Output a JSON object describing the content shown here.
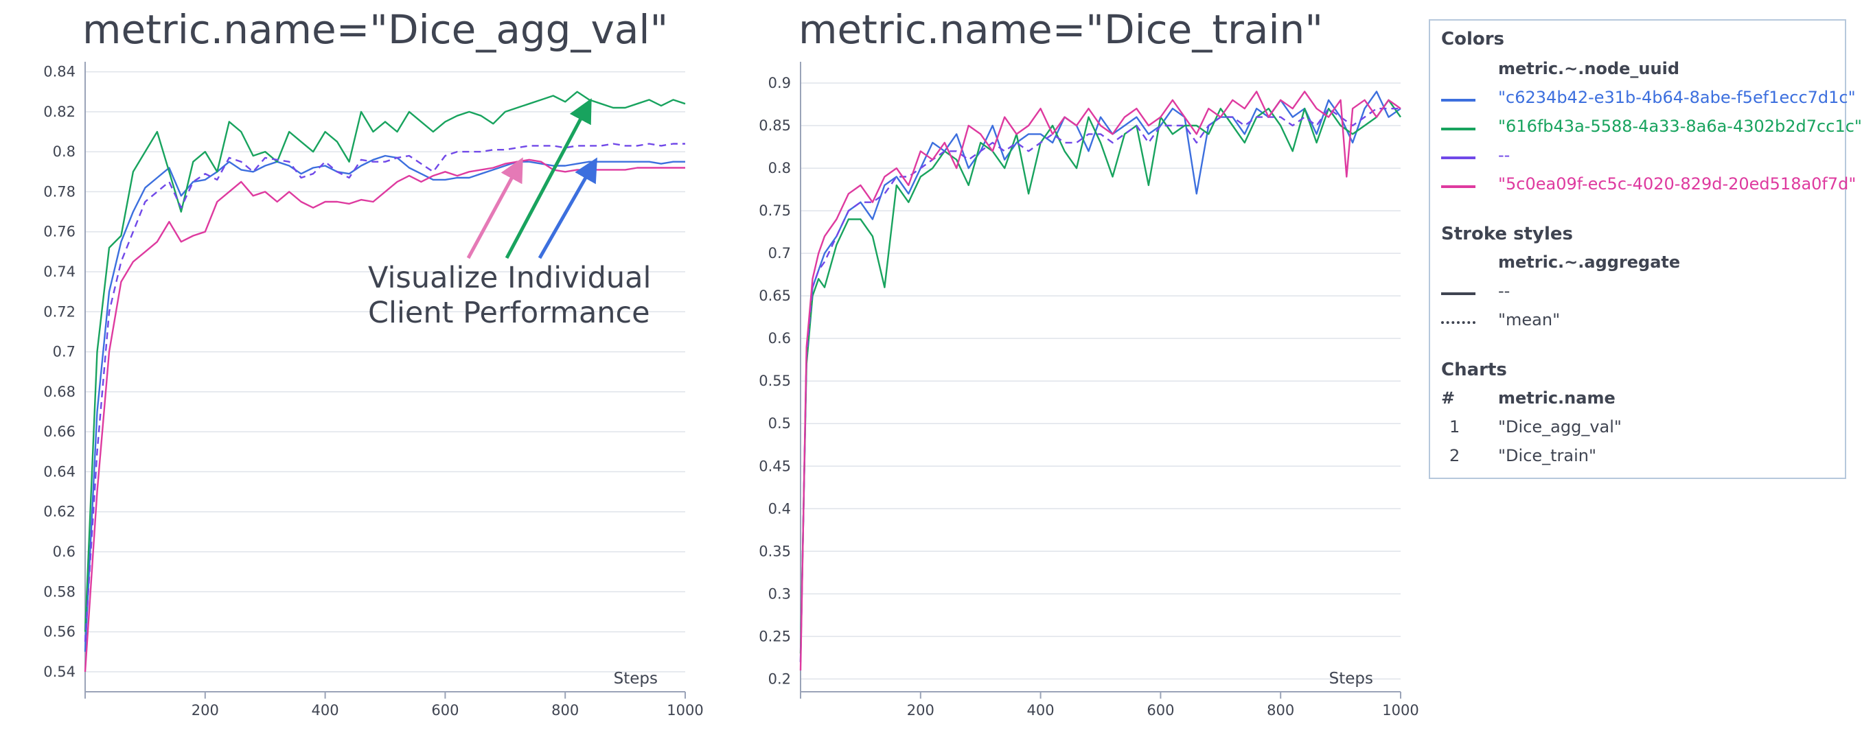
{
  "chart_data": [
    {
      "type": "line",
      "title": "metric.name=\"Dice_agg_val\"",
      "xlabel": "Steps",
      "ylabel": "",
      "xlim": [
        0,
        1000
      ],
      "ylim": [
        0.53,
        0.845
      ],
      "x_ticks": [
        200,
        400,
        600,
        800,
        1000
      ],
      "y_ticks": [
        0.54,
        0.56,
        0.58,
        0.6,
        0.62,
        0.64,
        0.66,
        0.68,
        0.7,
        0.72,
        0.74,
        0.76,
        0.78,
        0.8,
        0.82,
        0.84
      ],
      "y_tick_labels": [
        "0.54",
        "0.56",
        "0.58",
        "0.6",
        "0.62",
        "0.64",
        "0.66",
        "0.68",
        "0.7",
        "0.72",
        "0.74",
        "0.76",
        "0.78",
        "0.8",
        "0.82",
        "0.84"
      ],
      "grid": true,
      "series": [
        {
          "name": "\"c6234b42-e31b-4b64-8abe-f5ef1ecc7d1c\"",
          "color": "#3c6fde",
          "dash": "solid",
          "x": [
            0,
            20,
            40,
            60,
            80,
            100,
            120,
            140,
            160,
            180,
            200,
            220,
            240,
            260,
            280,
            300,
            320,
            340,
            360,
            380,
            400,
            420,
            440,
            460,
            480,
            500,
            520,
            540,
            560,
            580,
            600,
            620,
            640,
            660,
            680,
            700,
            720,
            740,
            760,
            780,
            800,
            820,
            840,
            860,
            880,
            900,
            920,
            940,
            960,
            980,
            1000
          ],
          "y": [
            0.55,
            0.67,
            0.73,
            0.755,
            0.77,
            0.782,
            0.787,
            0.792,
            0.778,
            0.785,
            0.786,
            0.79,
            0.795,
            0.791,
            0.79,
            0.793,
            0.795,
            0.793,
            0.789,
            0.792,
            0.793,
            0.79,
            0.789,
            0.793,
            0.796,
            0.798,
            0.797,
            0.792,
            0.789,
            0.786,
            0.786,
            0.787,
            0.787,
            0.789,
            0.791,
            0.793,
            0.795,
            0.795,
            0.794,
            0.793,
            0.793,
            0.794,
            0.795,
            0.795,
            0.795,
            0.795,
            0.795,
            0.795,
            0.794,
            0.795,
            0.795
          ]
        },
        {
          "name": "\"616fb43a-5588-4a33-8a6a-4302b2d7cc1c\"",
          "color": "#18a35e",
          "dash": "solid",
          "x": [
            0,
            20,
            40,
            60,
            80,
            100,
            120,
            140,
            160,
            180,
            200,
            220,
            240,
            260,
            280,
            300,
            320,
            340,
            360,
            380,
            400,
            420,
            440,
            460,
            480,
            500,
            520,
            540,
            560,
            580,
            600,
            620,
            640,
            660,
            680,
            700,
            720,
            740,
            760,
            780,
            800,
            820,
            840,
            860,
            880,
            900,
            920,
            940,
            960,
            980,
            1000
          ],
          "y": [
            0.56,
            0.7,
            0.752,
            0.758,
            0.79,
            0.8,
            0.81,
            0.79,
            0.77,
            0.795,
            0.8,
            0.79,
            0.815,
            0.81,
            0.798,
            0.8,
            0.795,
            0.81,
            0.805,
            0.8,
            0.81,
            0.805,
            0.795,
            0.82,
            0.81,
            0.815,
            0.81,
            0.82,
            0.815,
            0.81,
            0.815,
            0.818,
            0.82,
            0.818,
            0.814,
            0.82,
            0.822,
            0.824,
            0.826,
            0.828,
            0.825,
            0.83,
            0.826,
            0.824,
            0.822,
            0.822,
            0.824,
            0.826,
            0.823,
            0.826,
            0.824
          ]
        },
        {
          "name": "--",
          "color": "#7048e8",
          "dash": "dashed",
          "x": [
            0,
            20,
            40,
            60,
            80,
            100,
            120,
            140,
            160,
            180,
            200,
            220,
            240,
            260,
            280,
            300,
            320,
            340,
            360,
            380,
            400,
            420,
            440,
            460,
            480,
            500,
            520,
            540,
            560,
            580,
            600,
            620,
            640,
            660,
            680,
            700,
            720,
            740,
            760,
            780,
            800,
            820,
            840,
            860,
            880,
            900,
            920,
            940,
            960,
            980,
            1000
          ],
          "y": [
            0.555,
            0.65,
            0.72,
            0.745,
            0.76,
            0.775,
            0.78,
            0.785,
            0.772,
            0.785,
            0.789,
            0.786,
            0.797,
            0.795,
            0.79,
            0.797,
            0.796,
            0.795,
            0.787,
            0.789,
            0.795,
            0.79,
            0.787,
            0.796,
            0.795,
            0.795,
            0.797,
            0.798,
            0.794,
            0.79,
            0.798,
            0.8,
            0.8,
            0.8,
            0.801,
            0.801,
            0.802,
            0.803,
            0.803,
            0.803,
            0.802,
            0.803,
            0.803,
            0.803,
            0.804,
            0.803,
            0.803,
            0.804,
            0.803,
            0.804,
            0.804
          ]
        },
        {
          "name": "\"5c0ea09f-ec5c-4020-829d-20ed518a0f7d\"",
          "color": "#de3a9f",
          "dash": "solid",
          "x": [
            0,
            20,
            40,
            60,
            80,
            100,
            120,
            140,
            160,
            180,
            200,
            220,
            240,
            260,
            280,
            300,
            320,
            340,
            360,
            380,
            400,
            420,
            440,
            460,
            480,
            500,
            520,
            540,
            560,
            580,
            600,
            620,
            640,
            660,
            680,
            700,
            720,
            740,
            760,
            780,
            800,
            820,
            840,
            860,
            880,
            900,
            920,
            940,
            960,
            980,
            1000
          ],
          "y": [
            0.54,
            0.63,
            0.7,
            0.735,
            0.745,
            0.75,
            0.755,
            0.765,
            0.755,
            0.758,
            0.76,
            0.775,
            0.78,
            0.785,
            0.778,
            0.78,
            0.775,
            0.78,
            0.775,
            0.772,
            0.775,
            0.775,
            0.774,
            0.776,
            0.775,
            0.78,
            0.785,
            0.788,
            0.785,
            0.788,
            0.79,
            0.788,
            0.79,
            0.791,
            0.792,
            0.794,
            0.795,
            0.796,
            0.795,
            0.791,
            0.79,
            0.791,
            0.791,
            0.791,
            0.791,
            0.791,
            0.792,
            0.792,
            0.792,
            0.792,
            0.792
          ]
        }
      ],
      "annotation": {
        "text_lines": [
          "Visualize Individual",
          "Client Performance"
        ]
      }
    },
    {
      "type": "line",
      "title": "metric.name=\"Dice_train\"",
      "xlabel": "Steps",
      "ylabel": "",
      "xlim": [
        0,
        1000
      ],
      "ylim": [
        0.185,
        0.925
      ],
      "x_ticks": [
        200,
        400,
        600,
        800,
        1000
      ],
      "y_ticks": [
        0.2,
        0.25,
        0.3,
        0.35,
        0.4,
        0.45,
        0.5,
        0.55,
        0.6,
        0.65,
        0.7,
        0.75,
        0.8,
        0.85,
        0.9
      ],
      "y_tick_labels": [
        "0.2",
        "0.25",
        "0.3",
        "0.35",
        "0.4",
        "0.45",
        "0.5",
        "0.55",
        "0.6",
        "0.65",
        "0.7",
        "0.75",
        "0.8",
        "0.85",
        "0.9"
      ],
      "grid": true,
      "series": [
        {
          "name": "\"c6234b42-e31b-4b64-8abe-f5ef1ecc7d1c\"",
          "color": "#3c6fde",
          "dash": "solid",
          "x": [
            0,
            10,
            20,
            30,
            40,
            60,
            80,
            100,
            120,
            140,
            160,
            180,
            200,
            220,
            240,
            260,
            280,
            300,
            320,
            340,
            360,
            380,
            400,
            420,
            440,
            460,
            480,
            500,
            520,
            540,
            560,
            580,
            600,
            620,
            640,
            660,
            680,
            700,
            720,
            740,
            760,
            780,
            800,
            820,
            840,
            860,
            880,
            900,
            920,
            940,
            960,
            980,
            1000
          ],
          "y": [
            0.22,
            0.58,
            0.66,
            0.68,
            0.7,
            0.72,
            0.75,
            0.76,
            0.74,
            0.78,
            0.79,
            0.77,
            0.8,
            0.83,
            0.82,
            0.84,
            0.8,
            0.82,
            0.85,
            0.81,
            0.83,
            0.84,
            0.84,
            0.83,
            0.86,
            0.85,
            0.82,
            0.86,
            0.84,
            0.85,
            0.86,
            0.84,
            0.85,
            0.87,
            0.86,
            0.77,
            0.85,
            0.86,
            0.86,
            0.84,
            0.87,
            0.86,
            0.88,
            0.86,
            0.87,
            0.84,
            0.88,
            0.86,
            0.83,
            0.87,
            0.89,
            0.86,
            0.87
          ]
        },
        {
          "name": "\"616fb43a-5588-4a33-8a6a-4302b2d7cc1c\"",
          "color": "#18a35e",
          "dash": "solid",
          "x": [
            0,
            10,
            20,
            30,
            40,
            60,
            80,
            100,
            120,
            140,
            160,
            180,
            200,
            220,
            240,
            260,
            280,
            300,
            320,
            340,
            360,
            380,
            400,
            420,
            440,
            460,
            480,
            500,
            520,
            540,
            560,
            580,
            600,
            620,
            640,
            660,
            680,
            700,
            720,
            740,
            760,
            780,
            800,
            820,
            840,
            860,
            880,
            900,
            920,
            940,
            960,
            980,
            1000
          ],
          "y": [
            0.23,
            0.57,
            0.65,
            0.67,
            0.66,
            0.71,
            0.74,
            0.74,
            0.72,
            0.66,
            0.78,
            0.76,
            0.79,
            0.8,
            0.82,
            0.81,
            0.78,
            0.83,
            0.82,
            0.8,
            0.84,
            0.77,
            0.83,
            0.85,
            0.82,
            0.8,
            0.86,
            0.83,
            0.79,
            0.84,
            0.85,
            0.78,
            0.86,
            0.84,
            0.85,
            0.85,
            0.84,
            0.87,
            0.85,
            0.83,
            0.86,
            0.87,
            0.85,
            0.82,
            0.87,
            0.83,
            0.87,
            0.85,
            0.84,
            0.85,
            0.86,
            0.88,
            0.86
          ]
        },
        {
          "name": "--",
          "color": "#7048e8",
          "dash": "dashed",
          "x": [
            0,
            10,
            20,
            30,
            40,
            60,
            80,
            100,
            120,
            140,
            160,
            180,
            200,
            220,
            240,
            260,
            280,
            300,
            320,
            340,
            360,
            380,
            400,
            420,
            440,
            460,
            480,
            500,
            520,
            540,
            560,
            580,
            600,
            620,
            640,
            660,
            680,
            700,
            720,
            740,
            760,
            780,
            800,
            820,
            840,
            860,
            880,
            900,
            920,
            940,
            960,
            980,
            1000
          ],
          "y": [
            0.22,
            0.58,
            0.66,
            0.68,
            0.69,
            0.72,
            0.75,
            0.76,
            0.76,
            0.77,
            0.79,
            0.79,
            0.8,
            0.81,
            0.82,
            0.82,
            0.81,
            0.82,
            0.83,
            0.82,
            0.83,
            0.82,
            0.83,
            0.84,
            0.83,
            0.83,
            0.84,
            0.84,
            0.83,
            0.84,
            0.85,
            0.83,
            0.85,
            0.85,
            0.85,
            0.83,
            0.85,
            0.86,
            0.86,
            0.85,
            0.86,
            0.86,
            0.86,
            0.85,
            0.86,
            0.85,
            0.87,
            0.86,
            0.85,
            0.86,
            0.87,
            0.87,
            0.87
          ]
        },
        {
          "name": "\"5c0ea09f-ec5c-4020-829d-20ed518a0f7d\"",
          "color": "#de3a9f",
          "dash": "solid",
          "x": [
            0,
            10,
            20,
            30,
            40,
            60,
            80,
            100,
            120,
            140,
            160,
            180,
            200,
            220,
            240,
            260,
            280,
            300,
            320,
            340,
            360,
            380,
            400,
            420,
            440,
            460,
            480,
            500,
            520,
            540,
            560,
            580,
            600,
            620,
            640,
            660,
            680,
            700,
            720,
            740,
            760,
            780,
            800,
            820,
            840,
            860,
            880,
            900,
            910,
            920,
            940,
            960,
            980,
            1000
          ],
          "y": [
            0.21,
            0.59,
            0.67,
            0.7,
            0.72,
            0.74,
            0.77,
            0.78,
            0.76,
            0.79,
            0.8,
            0.78,
            0.82,
            0.81,
            0.83,
            0.8,
            0.85,
            0.84,
            0.82,
            0.86,
            0.84,
            0.85,
            0.87,
            0.84,
            0.86,
            0.85,
            0.87,
            0.85,
            0.84,
            0.86,
            0.87,
            0.85,
            0.86,
            0.88,
            0.86,
            0.84,
            0.87,
            0.86,
            0.88,
            0.87,
            0.89,
            0.86,
            0.88,
            0.87,
            0.89,
            0.87,
            0.86,
            0.88,
            0.79,
            0.87,
            0.88,
            0.86,
            0.88,
            0.87
          ]
        }
      ]
    }
  ],
  "legend": {
    "colors_heading": "Colors",
    "colors_column": "metric.~.node_uuid",
    "color_items": [
      {
        "label": "\"c6234b42-e31b-4b64-8abe-f5ef1ecc7d1c\"",
        "color": "#3c6fde"
      },
      {
        "label": "\"616fb43a-5588-4a33-8a6a-4302b2d7cc1c\"",
        "color": "#18a35e"
      },
      {
        "label": "--",
        "color": "#7048e8"
      },
      {
        "label": "\"5c0ea09f-ec5c-4020-829d-20ed518a0f7d\"",
        "color": "#de3a9f"
      }
    ],
    "stroke_heading": "Stroke styles",
    "stroke_column": "metric.~.aggregate",
    "stroke_items": [
      {
        "label": "--",
        "style": "solid"
      },
      {
        "label": "\"mean\"",
        "style": "dotted"
      }
    ],
    "charts_heading": "Charts",
    "charts_num_column": "#",
    "charts_name_column": "metric.name",
    "chart_items": [
      {
        "num": "1",
        "label": "\"Dice_agg_val\""
      },
      {
        "num": "2",
        "label": "\"Dice_train\""
      }
    ]
  },
  "colors": {
    "text": "#3f4451",
    "grid": "#dfe3ea",
    "axis": "#9aa3b8",
    "legend_border": "#b6c8dc"
  }
}
